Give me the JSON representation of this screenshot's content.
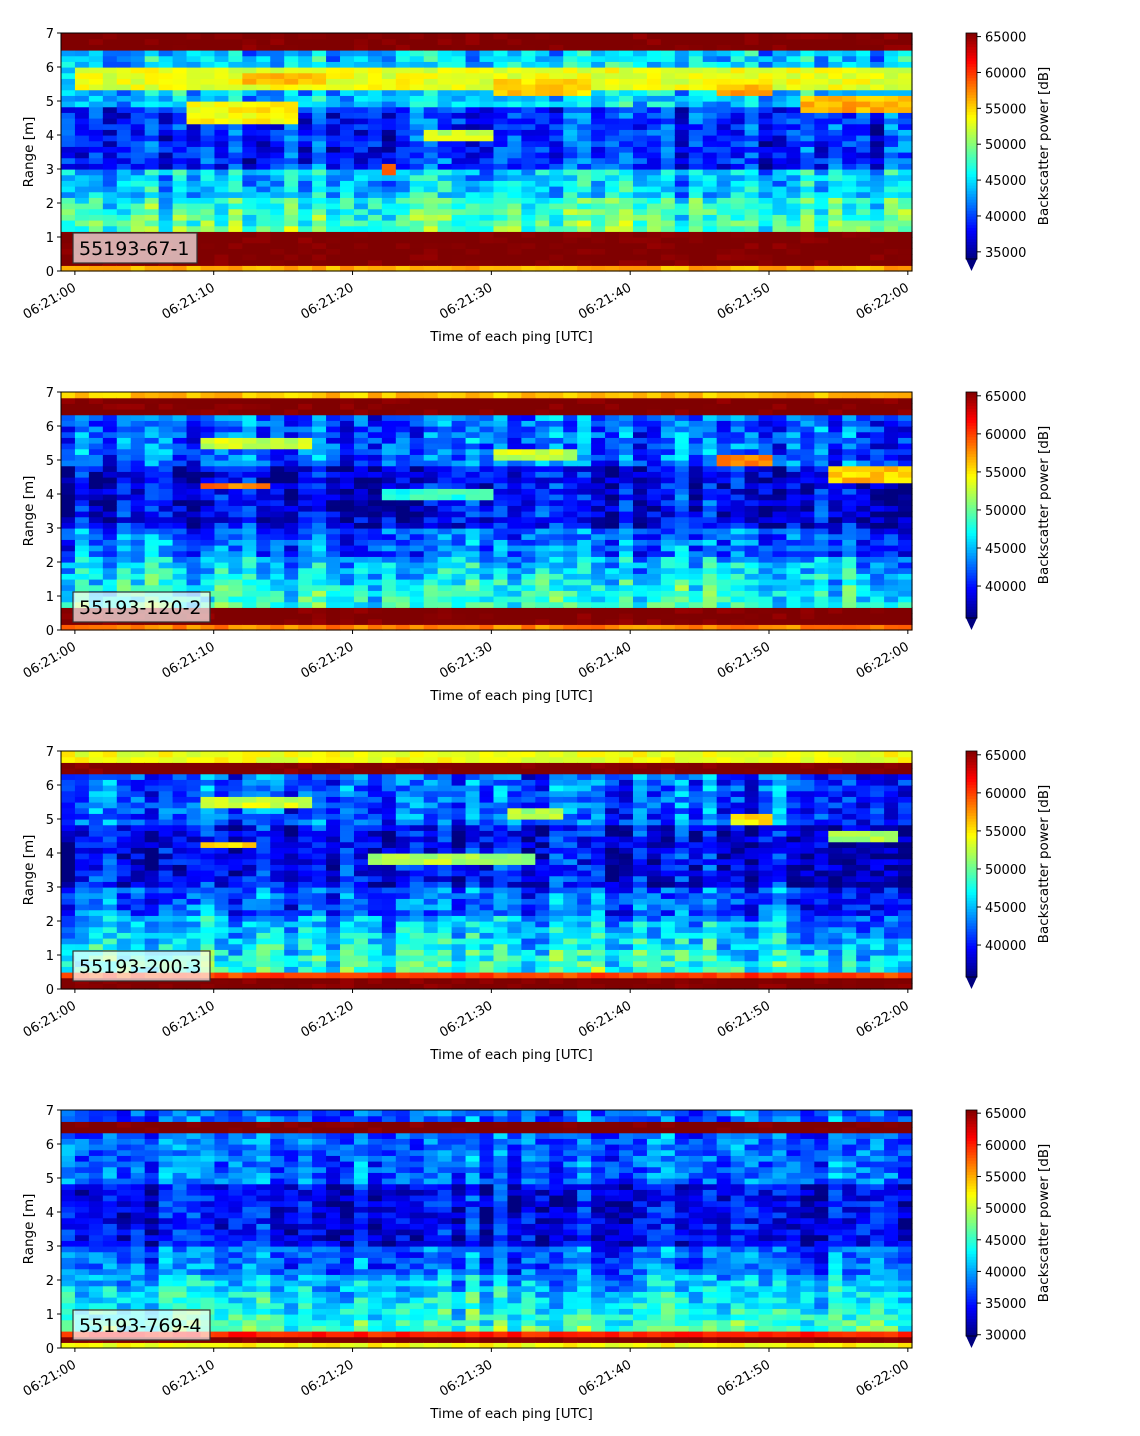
{
  "chart_data": [
    {
      "type": "heatmap",
      "panel_label": "55193-67-1",
      "xlabel": "Time of each ping [UTC]",
      "ylabel": "Range [m]",
      "x_ticks": [
        "06:21:00",
        "06:21:10",
        "06:21:20",
        "06:21:30",
        "06:21:40",
        "06:21:50",
        "06:22:00"
      ],
      "y_ticks": [
        "0",
        "1",
        "2",
        "3",
        "4",
        "5",
        "6",
        "7"
      ],
      "colorbar": {
        "label": "Backscatter power [dB]",
        "ticks": [
          "35000",
          "40000",
          "45000",
          "50000",
          "55000",
          "60000",
          "65000"
        ],
        "min": 34000,
        "max": 65500,
        "extend": "min"
      },
      "ylim": [
        0,
        7
      ],
      "xlim_seconds": [
        -1,
        60.3
      ],
      "bands": [
        {
          "y": [
            6.45,
            7.0
          ],
          "level": 66000
        },
        {
          "y": [
            1.1,
            1.25
          ],
          "level": 61000
        },
        {
          "y": [
            0.2,
            1.1
          ],
          "level": 66000
        },
        {
          "y": [
            0.0,
            0.2
          ],
          "level": 56000
        }
      ],
      "features": [
        {
          "t": [
            0,
            60
          ],
          "y": [
            5.4,
            6.0
          ],
          "level": 53000
        },
        {
          "t": [
            8,
            16
          ],
          "y": [
            4.4,
            5.0
          ],
          "level": 54000
        },
        {
          "t": [
            12,
            18
          ],
          "y": [
            5.5,
            5.9
          ],
          "level": 56000
        },
        {
          "t": [
            22,
            23
          ],
          "y": [
            2.8,
            3.2
          ],
          "level": 60000
        },
        {
          "t": [
            30,
            37
          ],
          "y": [
            5.2,
            5.6
          ],
          "level": 55000
        },
        {
          "t": [
            46,
            50
          ],
          "y": [
            5.2,
            5.5
          ],
          "level": 56000
        },
        {
          "t": [
            52,
            60
          ],
          "y": [
            4.7,
            5.2
          ],
          "level": 56000
        },
        {
          "t": [
            25,
            30
          ],
          "y": [
            3.8,
            4.2
          ],
          "level": 52000
        }
      ],
      "profile": {
        "base": 44000,
        "near_range_boost": 6000,
        "dark_mid": 39000,
        "noise": 6000
      }
    },
    {
      "type": "heatmap",
      "panel_label": "55193-120-2",
      "xlabel": "Time of each ping [UTC]",
      "ylabel": "Range [m]",
      "x_ticks": [
        "06:21:00",
        "06:21:10",
        "06:21:20",
        "06:21:30",
        "06:21:40",
        "06:21:50",
        "06:22:00"
      ],
      "y_ticks": [
        "0",
        "1",
        "2",
        "3",
        "4",
        "5",
        "6",
        "7"
      ],
      "colorbar": {
        "label": "Backscatter power [dB]",
        "ticks": [
          "40000",
          "45000",
          "50000",
          "55000",
          "60000",
          "65000"
        ],
        "min": 35800,
        "max": 65500,
        "extend": "min"
      },
      "ylim": [
        0,
        7
      ],
      "xlim_seconds": [
        -1,
        60.3
      ],
      "bands": [
        {
          "y": [
            6.85,
            7.0
          ],
          "level": 56000
        },
        {
          "y": [
            6.3,
            6.85
          ],
          "level": 66000
        },
        {
          "y": [
            0.6,
            0.75
          ],
          "level": 60000
        },
        {
          "y": [
            0.1,
            0.6
          ],
          "level": 66000
        },
        {
          "y": [
            0.0,
            0.1
          ],
          "level": 58000
        }
      ],
      "features": [
        {
          "t": [
            9,
            17
          ],
          "y": [
            5.3,
            5.6
          ],
          "level": 53000
        },
        {
          "t": [
            9,
            14
          ],
          "y": [
            4.1,
            4.4
          ],
          "level": 58000
        },
        {
          "t": [
            30,
            36
          ],
          "y": [
            5.0,
            5.3
          ],
          "level": 53000
        },
        {
          "t": [
            46,
            50
          ],
          "y": [
            4.9,
            5.2
          ],
          "level": 58000
        },
        {
          "t": [
            54,
            60
          ],
          "y": [
            4.4,
            4.8
          ],
          "level": 56000
        },
        {
          "t": [
            22,
            30
          ],
          "y": [
            3.8,
            4.1
          ],
          "level": 48000
        }
      ],
      "profile": {
        "base": 42500,
        "near_range_boost": 6000,
        "dark_mid": 39000,
        "noise": 6000
      }
    },
    {
      "type": "heatmap",
      "panel_label": "55193-200-3",
      "xlabel": "Time of each ping [UTC]",
      "ylabel": "Range [m]",
      "x_ticks": [
        "06:21:00",
        "06:21:10",
        "06:21:20",
        "06:21:30",
        "06:21:40",
        "06:21:50",
        "06:22:00"
      ],
      "y_ticks": [
        "0",
        "1",
        "2",
        "3",
        "4",
        "5",
        "6",
        "7"
      ],
      "colorbar": {
        "label": "Backscatter power [dB]",
        "ticks": [
          "40000",
          "45000",
          "50000",
          "55000",
          "60000",
          "65000"
        ],
        "min": 35800,
        "max": 65500,
        "extend": "min"
      },
      "ylim": [
        0,
        7
      ],
      "xlim_seconds": [
        -1,
        60.3
      ],
      "bands": [
        {
          "y": [
            6.75,
            7.0
          ],
          "level": 54000
        },
        {
          "y": [
            6.3,
            6.75
          ],
          "level": 66000
        },
        {
          "y": [
            0.4,
            0.55
          ],
          "level": 60000
        },
        {
          "y": [
            0.0,
            0.4
          ],
          "level": 66000
        }
      ],
      "features": [
        {
          "t": [
            9,
            17
          ],
          "y": [
            5.3,
            5.6
          ],
          "level": 53000
        },
        {
          "t": [
            9,
            13
          ],
          "y": [
            4.1,
            4.4
          ],
          "level": 56000
        },
        {
          "t": [
            21,
            33
          ],
          "y": [
            3.7,
            4.0
          ],
          "level": 52000
        },
        {
          "t": [
            31,
            35
          ],
          "y": [
            5.0,
            5.3
          ],
          "level": 52000
        },
        {
          "t": [
            47,
            50
          ],
          "y": [
            4.9,
            5.2
          ],
          "level": 55000
        },
        {
          "t": [
            54,
            59
          ],
          "y": [
            4.4,
            4.7
          ],
          "level": 52000
        }
      ],
      "profile": {
        "base": 42000,
        "near_range_boost": 6000,
        "dark_mid": 39000,
        "noise": 6000
      }
    },
    {
      "type": "heatmap",
      "panel_label": "55193-769-4",
      "xlabel": "Time of each ping [UTC]",
      "ylabel": "Range [m]",
      "x_ticks": [
        "06:21:00",
        "06:21:10",
        "06:21:20",
        "06:21:30",
        "06:21:40",
        "06:21:50",
        "06:22:00"
      ],
      "y_ticks": [
        "0",
        "1",
        "2",
        "3",
        "4",
        "5",
        "6",
        "7"
      ],
      "colorbar": {
        "label": "Backscatter power [dB]",
        "ticks": [
          "30000",
          "35000",
          "40000",
          "45000",
          "50000",
          "55000",
          "60000",
          "65000"
        ],
        "min": 29800,
        "max": 65500,
        "extend": "min"
      },
      "ylim": [
        0,
        7
      ],
      "xlim_seconds": [
        -1,
        60.3
      ],
      "bands": [
        {
          "y": [
            6.35,
            6.6
          ],
          "level": 66000
        },
        {
          "y": [
            0.4,
            0.5
          ],
          "level": 60000
        },
        {
          "y": [
            0.2,
            0.4
          ],
          "level": 66000
        },
        {
          "y": [
            0.0,
            0.2
          ],
          "level": 52000
        }
      ],
      "features": [],
      "profile": {
        "base": 38000,
        "near_range_boost": 8000,
        "dark_mid": 34000,
        "noise": 6500
      }
    }
  ]
}
